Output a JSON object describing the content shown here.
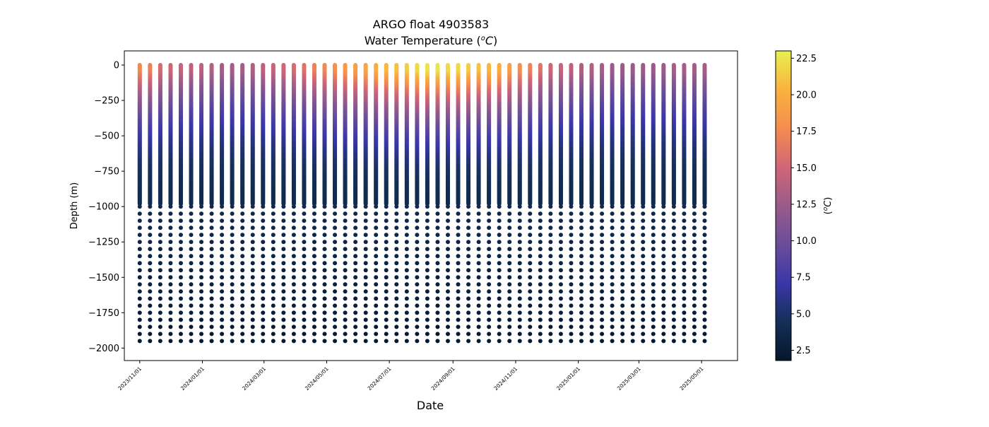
{
  "chart_data": {
    "type": "scatter",
    "title": "ARGO float 4903583",
    "subtitle_prefix": "Water Temperature (",
    "subtitle_unit_sup": "o",
    "subtitle_unit_main": "C",
    "subtitle_suffix": ")",
    "xlabel": "Date",
    "ylabel": "Depth (m)",
    "colorbar_label": "(°C)",
    "colorbar_label_sup": "o",
    "colorbar_label_main": "C",
    "xlim": [
      "2023-10-17",
      "2025-06-05"
    ],
    "ylim": [
      -2088,
      100
    ],
    "yticks": [
      0,
      -250,
      -500,
      -750,
      -1000,
      -1250,
      -1500,
      -1750,
      -2000
    ],
    "ytick_labels": [
      "0",
      "−250",
      "−500",
      "−750",
      "−1000",
      "−1250",
      "−1500",
      "−1750",
      "−2000"
    ],
    "xticks": [
      "2023-11-01",
      "2024-01-01",
      "2024-03-01",
      "2024-05-01",
      "2024-07-01",
      "2024-09-01",
      "2024-11-01",
      "2025-01-01",
      "2025-03-01",
      "2025-05-01"
    ],
    "xtick_labels": [
      "2023/11/01",
      "2024/01/01",
      "2024/03/01",
      "2024/05/01",
      "2024/07/01",
      "2024/09/01",
      "2024/11/01",
      "2025/01/01",
      "2025/03/01",
      "2025/05/01"
    ],
    "profile_start_date": "2023-11-01",
    "profile_interval_days": 10,
    "profile_count": 56,
    "surface_temperatures": [
      17.5,
      17.0,
      15.5,
      15.0,
      14.5,
      14.0,
      14.0,
      13.5,
      13.0,
      13.0,
      13.0,
      13.5,
      14.0,
      14.5,
      15.0,
      15.5,
      16.0,
      17.0,
      17.5,
      18.0,
      18.5,
      19.0,
      19.5,
      20.0,
      20.5,
      21.0,
      21.5,
      22.0,
      22.5,
      22.5,
      22.0,
      22.0,
      21.5,
      21.0,
      20.5,
      20.0,
      19.0,
      18.0,
      17.0,
      16.0,
      15.0,
      14.5,
      14.0,
      13.5,
      13.5,
      13.0,
      12.5,
      12.5,
      12.5,
      12.5,
      12.5,
      12.5,
      13.0,
      13.0,
      13.0,
      13.0
    ],
    "colorbar": {
      "min": 1.8,
      "max": 23.0,
      "ticks": [
        2.5,
        5.0,
        7.5,
        10.0,
        12.5,
        15.0,
        17.5,
        20.0,
        22.5
      ],
      "tick_labels": [
        "2.5",
        "5.0",
        "7.5",
        "10.0",
        "12.5",
        "15.0",
        "17.5",
        "20.0",
        "22.5"
      ],
      "colormap": "thermal",
      "colors": [
        "#04172b",
        "#142f57",
        "#3a37a8",
        "#6a4d9a",
        "#9a5b8b",
        "#d06677",
        "#f58c4f",
        "#f9b33d",
        "#e8f14f"
      ]
    },
    "marker_size": 3,
    "grid": false,
    "legend": "none"
  }
}
